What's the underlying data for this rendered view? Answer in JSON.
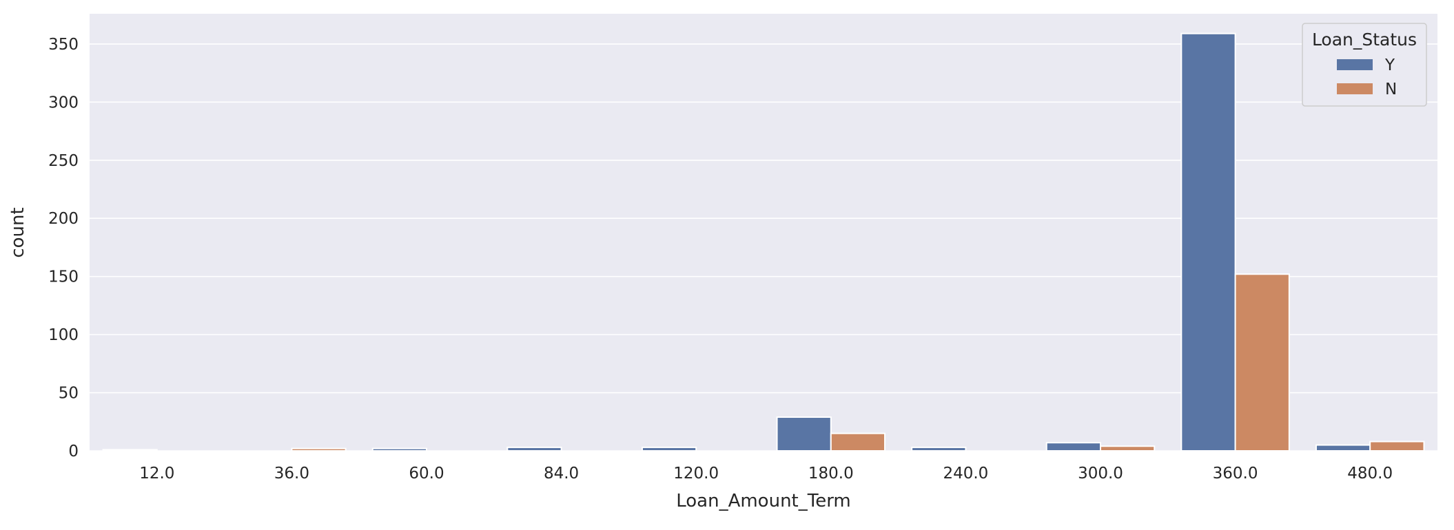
{
  "chart_data": {
    "type": "bar",
    "categories": [
      "12.0",
      "36.0",
      "60.0",
      "84.0",
      "120.0",
      "180.0",
      "240.0",
      "300.0",
      "360.0",
      "480.0"
    ],
    "series": [
      {
        "name": "Y",
        "values": [
          1,
          0,
          2,
          3,
          3,
          29,
          3,
          7,
          359,
          5
        ]
      },
      {
        "name": "N",
        "values": [
          0,
          2,
          0,
          0,
          0,
          15,
          0,
          4,
          152,
          8
        ]
      }
    ],
    "xlabel": "Loan_Amount_Term",
    "ylabel": "count",
    "ylim": [
      0,
      376
    ],
    "yticks": [
      0,
      50,
      100,
      150,
      200,
      250,
      300,
      350
    ],
    "grid": true,
    "legend": {
      "title": "Loan_Status",
      "position": "top-right"
    },
    "colors": {
      "Y": "#5975a4",
      "N": "#cc8963",
      "background": "#eaeaf2",
      "grid": "#ffffff"
    }
  }
}
